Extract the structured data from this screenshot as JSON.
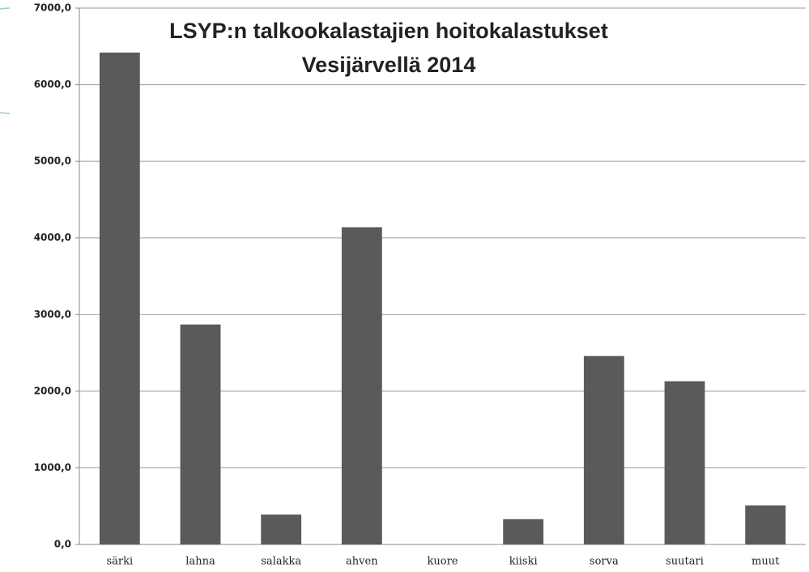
{
  "chart_data": {
    "type": "bar",
    "title": [
      "LSYP:n talkookalastajien hoitokalastukset",
      "Vesijärvellä 2014"
    ],
    "categories": [
      "särki",
      "lahna",
      "salakka",
      "ahven",
      "kuore",
      "kiiski",
      "sorva",
      "suutari",
      "muut"
    ],
    "values": [
      6420,
      2870,
      390,
      4140,
      0,
      330,
      2460,
      2130,
      510
    ],
    "color": "#5a5a5a",
    "ylim": [
      0,
      7000
    ],
    "yticks": [
      {
        "value": 0,
        "label": "0,0"
      },
      {
        "value": 1000,
        "label": "1000,0"
      },
      {
        "value": 2000,
        "label": "2000,0"
      },
      {
        "value": 3000,
        "label": "3000,0"
      },
      {
        "value": 4000,
        "label": "4000,0"
      },
      {
        "value": 5000,
        "label": "5000,0"
      },
      {
        "value": 6000,
        "label": "6000,0"
      },
      {
        "value": 7000,
        "label": "7000,0"
      }
    ],
    "grid": true
  }
}
